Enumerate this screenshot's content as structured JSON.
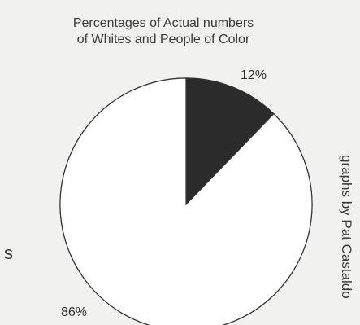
{
  "chart_data": {
    "type": "pie",
    "title_lines": [
      "Percentages of Actual numbers",
      "of Whites and People of Color"
    ],
    "slices": [
      {
        "label": "12%",
        "value": 12,
        "color": "#2b2b2b"
      },
      {
        "label": "86%",
        "value": 86,
        "color": "#ffffff"
      }
    ]
  },
  "credit": "graphs by Pat Castaldo",
  "edge_glyph": "s"
}
